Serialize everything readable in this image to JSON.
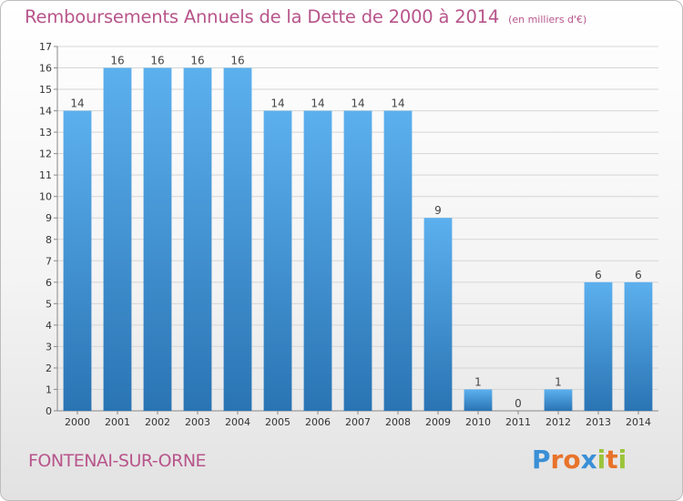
{
  "title": "Remboursements Annuels de la Dette de 2000 à 2014",
  "subtitle": "(en milliers d'€)",
  "location": "FONTENAI-SUR-ORNE",
  "logo": {
    "letters": [
      "P",
      "r",
      "o",
      "x",
      "i",
      "t",
      "i"
    ],
    "colors": [
      "#3a8fd6",
      "#e8732a",
      "#e8732a",
      "#3a8fd6",
      "#9bc43a",
      "#e8732a",
      "#9bc43a"
    ]
  },
  "colors": {
    "bar_top": "#5cb0ee",
    "bar_bottom": "#2a74b4",
    "title": "#b8558b"
  },
  "chart_data": {
    "type": "bar",
    "categories": [
      "2000",
      "2001",
      "2002",
      "2003",
      "2004",
      "2005",
      "2006",
      "2007",
      "2008",
      "2009",
      "2010",
      "2011",
      "2012",
      "2013",
      "2014"
    ],
    "values": [
      14,
      16,
      16,
      16,
      16,
      14,
      14,
      14,
      14,
      9,
      1,
      0,
      1,
      6,
      6
    ],
    "title": "Remboursements Annuels de la Dette de 2000 à 2014",
    "subtitle": "(en milliers d'€)",
    "ylim": [
      0,
      17
    ],
    "yticks": [
      0,
      1,
      2,
      3,
      4,
      5,
      6,
      7,
      8,
      9,
      10,
      11,
      12,
      13,
      14,
      15,
      16,
      17
    ],
    "grid": true
  }
}
